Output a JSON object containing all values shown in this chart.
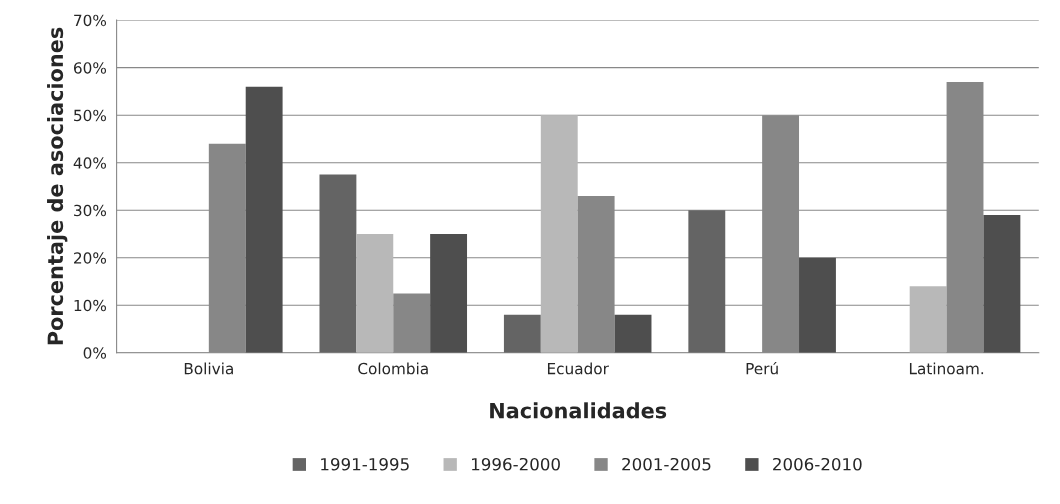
{
  "chart_data": {
    "type": "bar",
    "xlabel": "Nacionalidades",
    "ylabel": "Porcentaje de asociaciones",
    "categories": [
      "Bolivia",
      "Colombia",
      "Ecuador",
      "Perú",
      "Latinoam."
    ],
    "series": [
      {
        "name": "1991-1995",
        "color": "#646464",
        "values": [
          null,
          37.5,
          8,
          30,
          null
        ]
      },
      {
        "name": "1996-2000",
        "color": "#b8b8b8",
        "values": [
          null,
          25,
          50,
          null,
          14
        ]
      },
      {
        "name": "2001-2005",
        "color": "#878787",
        "values": [
          44,
          12.5,
          33,
          50,
          57
        ]
      },
      {
        "name": "2006-2010",
        "color": "#4e4e4e",
        "values": [
          56,
          25,
          8,
          20,
          29
        ]
      }
    ],
    "ylim": [
      0,
      70
    ],
    "yticks": [
      {
        "value": 0,
        "label": "0%"
      },
      {
        "value": 10,
        "label": "10%"
      },
      {
        "value": 20,
        "label": "20%"
      },
      {
        "value": 30,
        "label": "30%"
      },
      {
        "value": 40,
        "label": "40%"
      },
      {
        "value": 50,
        "label": "50%"
      },
      {
        "value": 60,
        "label": "60%"
      },
      {
        "value": 70,
        "label": "70%"
      }
    ],
    "grid": "y",
    "legend": "bottom"
  }
}
